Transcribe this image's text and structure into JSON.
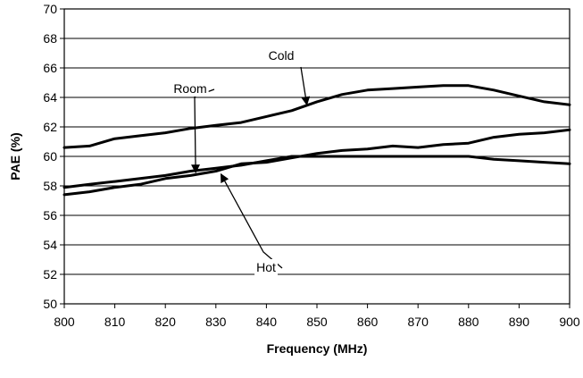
{
  "chart_data": {
    "type": "line",
    "title": "",
    "xlabel": "Frequency (MHz)",
    "ylabel": "PAE (%)",
    "xlim": [
      800,
      900
    ],
    "ylim": [
      50,
      70
    ],
    "grid": "horizontal",
    "xticks": [
      "800",
      "810",
      "820",
      "830",
      "840",
      "850",
      "860",
      "870",
      "880",
      "890",
      "900"
    ],
    "yticks": [
      "50",
      "52",
      "54",
      "56",
      "58",
      "60",
      "62",
      "64",
      "66",
      "68",
      "70"
    ],
    "series": [
      {
        "name": "Cold",
        "x": [
          800,
          805,
          810,
          815,
          820,
          825,
          830,
          835,
          840,
          845,
          850,
          855,
          860,
          865,
          870,
          875,
          880,
          885,
          890,
          895,
          900
        ],
        "y": [
          60.6,
          60.7,
          61.2,
          61.4,
          61.6,
          61.9,
          62.1,
          62.3,
          62.7,
          63.1,
          63.7,
          64.2,
          64.5,
          64.6,
          64.7,
          64.8,
          64.8,
          64.5,
          64.1,
          63.7,
          63.5
        ]
      },
      {
        "name": "Room",
        "x": [
          800,
          805,
          810,
          815,
          820,
          825,
          830,
          835,
          840,
          845,
          850,
          855,
          860,
          865,
          870,
          875,
          880,
          885,
          890,
          895,
          900
        ],
        "y": [
          57.9,
          58.1,
          58.3,
          58.5,
          58.7,
          59.0,
          59.2,
          59.4,
          59.7,
          60.0,
          60.0,
          60.0,
          60.0,
          60.0,
          60.0,
          60.0,
          60.0,
          59.8,
          59.7,
          59.6,
          59.5
        ]
      },
      {
        "name": "Hot",
        "x": [
          800,
          805,
          810,
          815,
          820,
          825,
          830,
          835,
          840,
          845,
          850,
          855,
          860,
          865,
          870,
          875,
          880,
          885,
          890,
          895,
          900
        ],
        "y": [
          57.4,
          57.6,
          57.9,
          58.1,
          58.5,
          58.7,
          59.0,
          59.5,
          59.6,
          59.9,
          60.2,
          60.4,
          60.5,
          60.7,
          60.6,
          60.8,
          60.9,
          61.3,
          61.5,
          61.6,
          61.8
        ]
      }
    ],
    "annotations": [
      {
        "text": "Cold",
        "series": "Cold",
        "target_x": 848,
        "target_y": 63.5
      },
      {
        "text": "Room",
        "series": "Room",
        "target_x": 826,
        "target_y": 58.9
      },
      {
        "text": "Hot",
        "series": "Hot",
        "target_x": 831,
        "target_y": 58.8
      }
    ]
  }
}
